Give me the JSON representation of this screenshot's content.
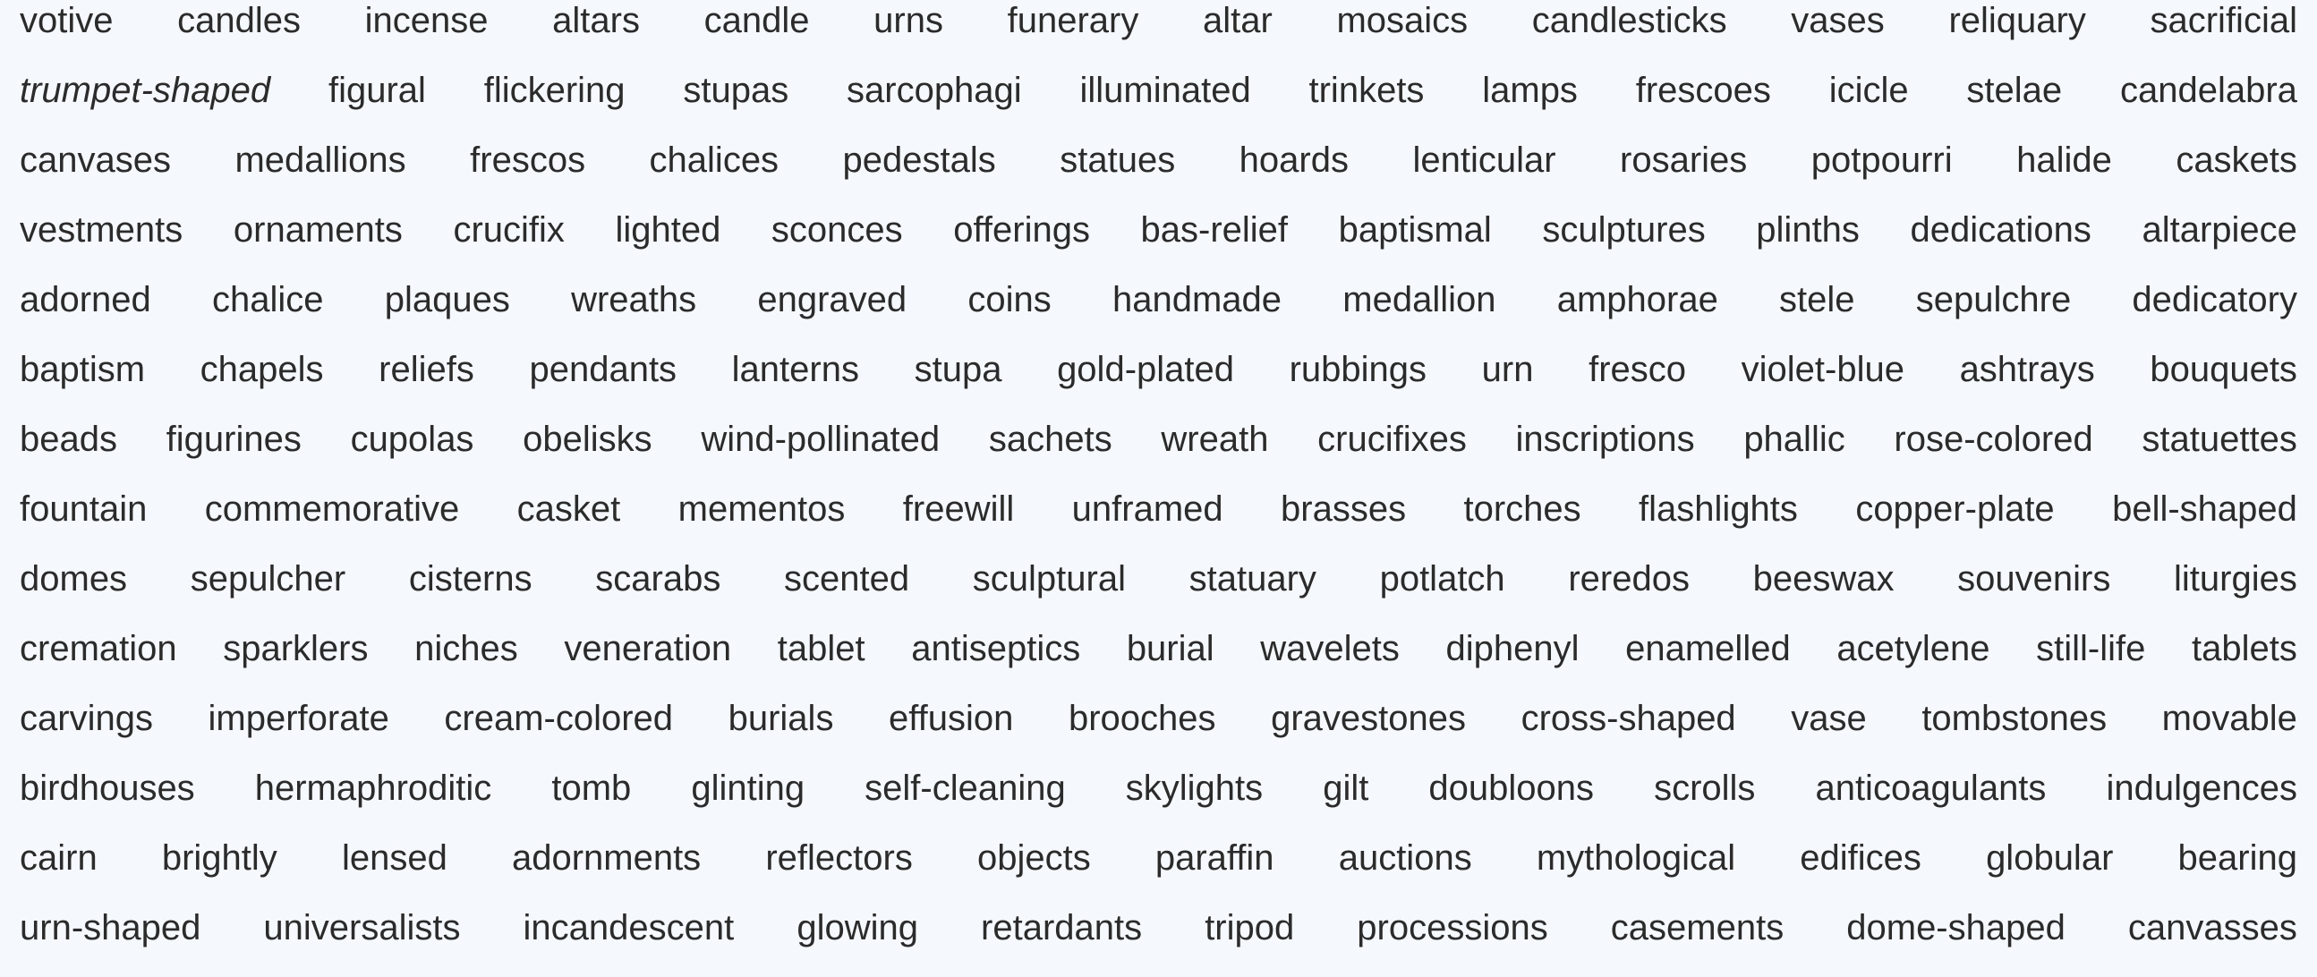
{
  "lines": [
    [
      "votive",
      "candles",
      "incense",
      "altars",
      "candle",
      "urns",
      "funerary",
      "altar",
      "mosaics",
      "candlesticks",
      "vases",
      "reliquary",
      "sacrificial"
    ],
    [
      "trumpet-shaped",
      "figural",
      "flickering",
      "stupas",
      "sarcophagi",
      "illuminated",
      "trinkets",
      "lamps",
      "frescoes",
      "icicle",
      "stelae",
      "candelabra"
    ],
    [
      "canvases",
      "medallions",
      "frescos",
      "chalices",
      "pedestals",
      "statues",
      "hoards",
      "lenticular",
      "rosaries",
      "potpourri",
      "halide",
      "caskets"
    ],
    [
      "vestments",
      "ornaments",
      "crucifix",
      "lighted",
      "sconces",
      "offerings",
      "bas-relief",
      "baptismal",
      "sculptures",
      "plinths",
      "dedications",
      "altarpiece"
    ],
    [
      "adorned",
      "chalice",
      "plaques",
      "wreaths",
      "engraved",
      "coins",
      "handmade",
      "medallion",
      "amphorae",
      "stele",
      "sepulchre",
      "dedicatory"
    ],
    [
      "baptism",
      "chapels",
      "reliefs",
      "pendants",
      "lanterns",
      "stupa",
      "gold-plated",
      "rubbings",
      "urn",
      "fresco",
      "violet-blue",
      "ashtrays",
      "bouquets"
    ],
    [
      "beads",
      "figurines",
      "cupolas",
      "obelisks",
      "wind-pollinated",
      "sachets",
      "wreath",
      "crucifixes",
      "inscriptions",
      "phallic",
      "rose-colored",
      "statuettes"
    ],
    [
      "fountain",
      "commemorative",
      "casket",
      "mementos",
      "freewill",
      "unframed",
      "brasses",
      "torches",
      "flashlights",
      "copper-plate",
      "bell-shaped"
    ],
    [
      "domes",
      "sepulcher",
      "cisterns",
      "scarabs",
      "scented",
      "sculptural",
      "statuary",
      "potlatch",
      "reredos",
      "beeswax",
      "souvenirs",
      "liturgies"
    ],
    [
      "cremation",
      "sparklers",
      "niches",
      "veneration",
      "tablet",
      "antiseptics",
      "burial",
      "wavelets",
      "diphenyl",
      "enamelled",
      "acetylene",
      "still-life",
      "tablets"
    ],
    [
      "carvings",
      "imperforate",
      "cream-colored",
      "burials",
      "effusion",
      "brooches",
      "gravestones",
      "cross-shaped",
      "vase",
      "tombstones",
      "movable"
    ],
    [
      "birdhouses",
      "hermaphroditic",
      "tomb",
      "glinting",
      "self-cleaning",
      "skylights",
      "gilt",
      "doubloons",
      "scrolls",
      "anticoagulants",
      "indulgences"
    ],
    [
      "cairn",
      "brightly",
      "lensed",
      "adornments",
      "reflectors",
      "objects",
      "paraffin",
      "auctions",
      "mythological",
      "edifices",
      "globular",
      "bearing"
    ],
    [
      "urn-shaped",
      "universalists",
      "incandescent",
      "glowing",
      "retardants",
      "tripod",
      "processions",
      "casements",
      "dome-shaped",
      "canvasses"
    ]
  ],
  "italic_words": [
    "trumpet-shaped"
  ]
}
